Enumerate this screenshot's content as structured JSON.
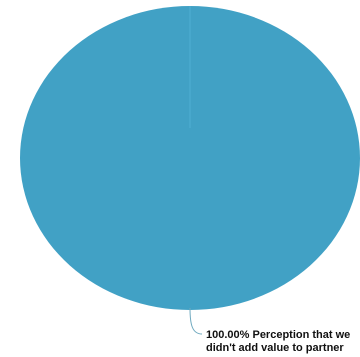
{
  "chart_data": {
    "type": "pie",
    "title": "",
    "slices": [
      {
        "label_lines": [
          "Perception that we",
          "didn't add value to partner"
        ],
        "value": 100.0,
        "percent_label": "100.00%",
        "color": "#41a1c5"
      }
    ],
    "legend": "none"
  }
}
